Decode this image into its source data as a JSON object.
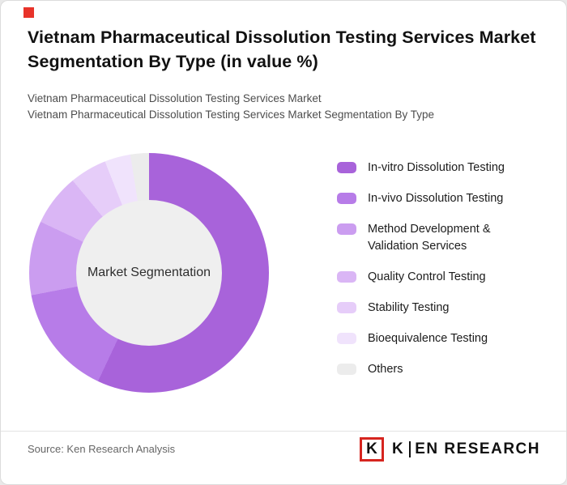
{
  "accent": {
    "color": "#e8332a"
  },
  "header": {
    "title": "Vietnam Pharmaceutical Dissolution Testing Services Market Segmentation By Type (in value %)",
    "subtitle1": "Vietnam Pharmaceutical Dissolution Testing Services Market",
    "subtitle2": "Vietnam Pharmaceutical Dissolution Testing Services Market Segmentation By Type"
  },
  "chart_data": {
    "type": "pie",
    "variant": "donut",
    "title": "Vietnam Pharmaceutical Dissolution Testing Services Market Segmentation By Type (in value %)",
    "center_label": "Market Segmentation",
    "start_angle_deg": 0,
    "direction": "clockwise",
    "legend_position": "right",
    "hole_color": "#efefef",
    "segments": [
      {
        "label": "In-vitro Dissolution Testing",
        "value": 57,
        "color": "#a863da"
      },
      {
        "label": "In-vivo Dissolution Testing",
        "value": 15,
        "color": "#b77ce8"
      },
      {
        "label": "Method Development &\nValidation Services",
        "value": 10,
        "color": "#cb9df0"
      },
      {
        "label": "Quality Control Testing",
        "value": 7,
        "color": "#dab6f5"
      },
      {
        "label": "Stability Testing",
        "value": 5,
        "color": "#e6cdf9"
      },
      {
        "label": "Bioequivalence Testing",
        "value": 3.5,
        "color": "#f0e3fc"
      },
      {
        "label": "Others",
        "value": 2.5,
        "color": "#ececec"
      }
    ]
  },
  "footer": {
    "source": "Source: Ken Research Analysis",
    "logo_mark": "K",
    "logo_first": "K",
    "logo_rest": "EN RESEARCH"
  }
}
